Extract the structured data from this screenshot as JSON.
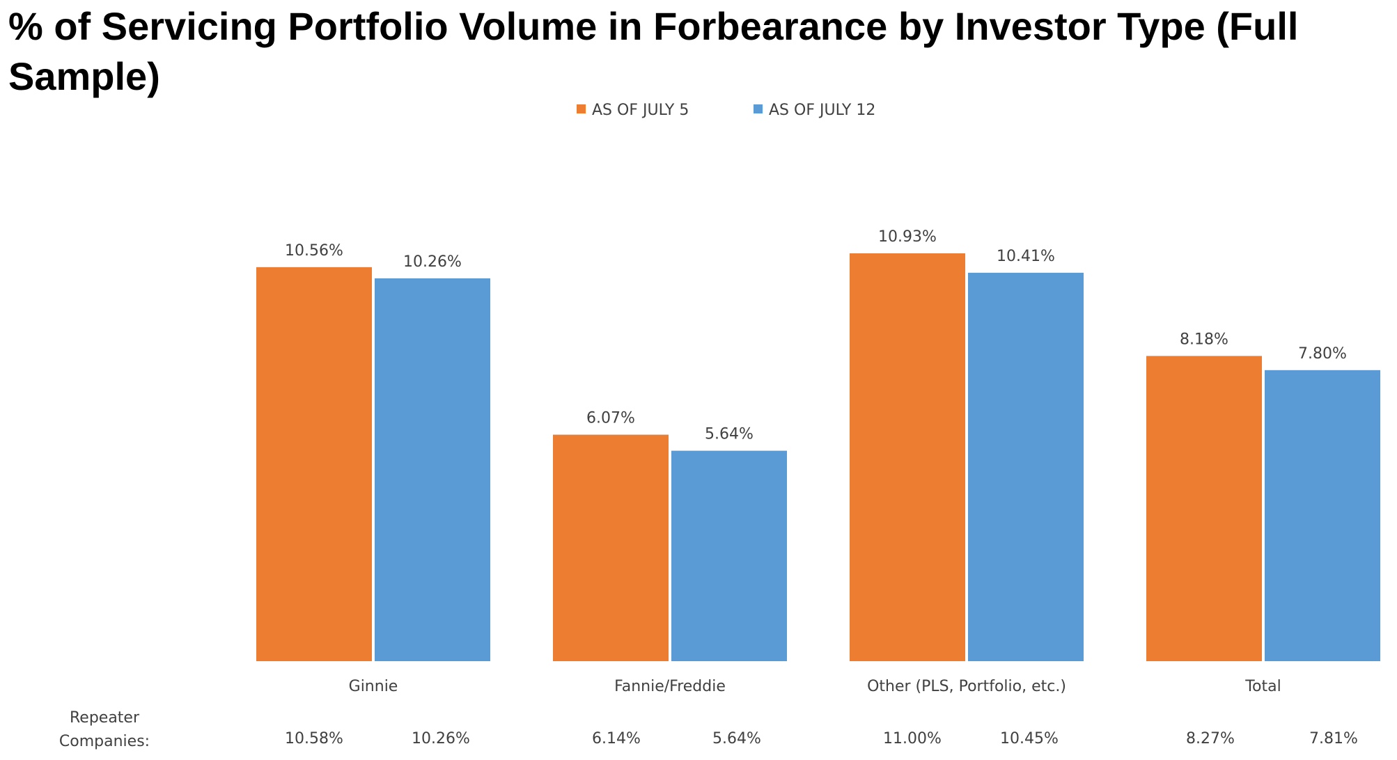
{
  "title": "% of Servicing Portfolio Volume in Forbearance by Investor Type (Full Sample)",
  "colors": {
    "series_1": "#ed7d31",
    "series_2": "#5b9bd5"
  },
  "chart_data": {
    "type": "bar",
    "categories": [
      "Ginnie",
      "Fannie/Freddie",
      "Other (PLS, Portfolio, etc.)",
      "Total"
    ],
    "series": [
      {
        "name": "AS OF JULY 5",
        "values": [
          10.56,
          6.07,
          10.93,
          8.18
        ],
        "labels": [
          "10.56%",
          "6.07%",
          "10.93%",
          "8.18%"
        ]
      },
      {
        "name": "AS OF JULY 12",
        "values": [
          10.26,
          5.64,
          10.41,
          7.8
        ],
        "labels": [
          "10.26%",
          "5.64%",
          "10.41%",
          "7.80%"
        ]
      }
    ],
    "legend_position": "top-center",
    "grid": false,
    "ylim": [
      0,
      10.93
    ],
    "repeater": {
      "label_line1": "Repeater",
      "label_line2": "Companies:",
      "values": [
        [
          "10.58%",
          "10.26%"
        ],
        [
          "6.14%",
          "5.64%"
        ],
        [
          "11.00%",
          "10.45%"
        ],
        [
          "8.27%",
          "7.81%"
        ]
      ]
    }
  }
}
